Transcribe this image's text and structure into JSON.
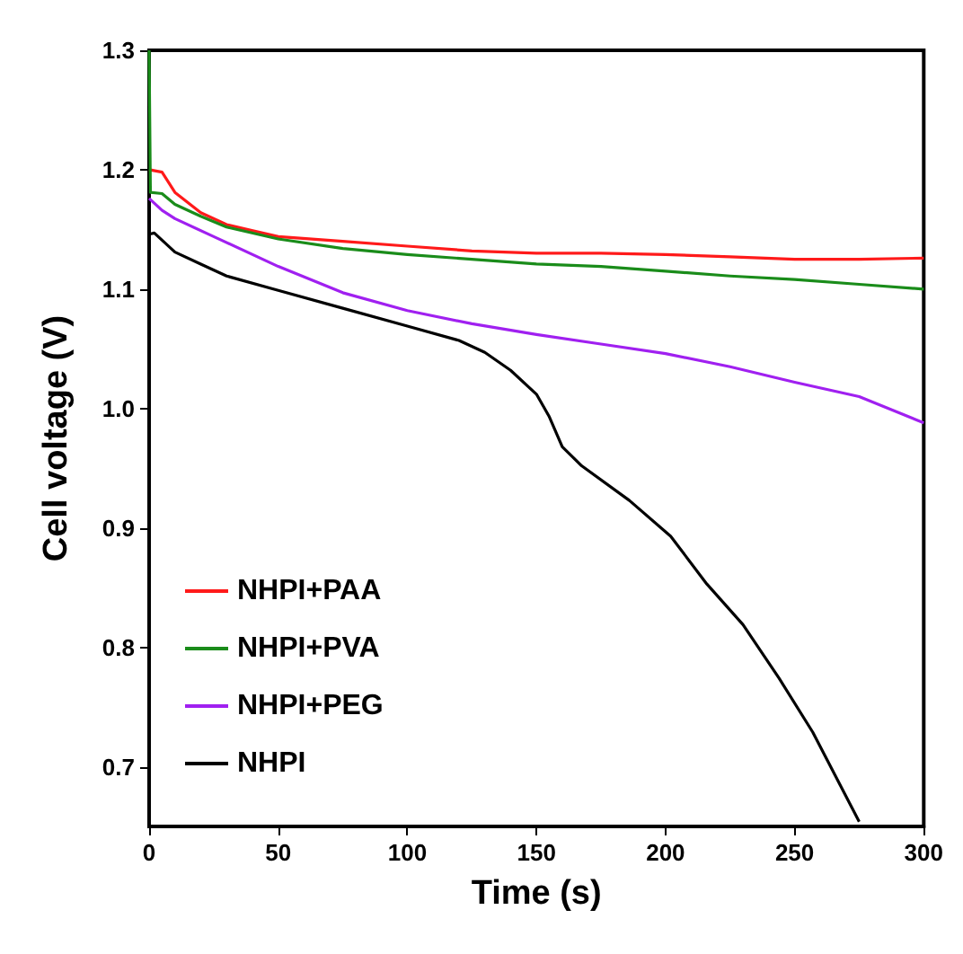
{
  "chart_data": {
    "type": "line",
    "xlabel": "Time (s)",
    "ylabel": "Cell voltage (V)",
    "xlim": [
      0,
      300
    ],
    "xticks": [
      0,
      50,
      100,
      150,
      200,
      250,
      300
    ],
    "ylim": [
      0.65,
      1.3
    ],
    "yticks": [
      0.7,
      0.8,
      0.9,
      {
        "value": 1,
        "label": "1.0"
      },
      1.1,
      1.2,
      1.3
    ],
    "grid": false,
    "legend": "bottom left",
    "marker": "none",
    "line_style": "solid",
    "series": [
      {
        "name": "NHPI+PAA",
        "color": "#ff1a1a",
        "x": [
          0,
          5,
          10,
          20,
          30,
          50,
          75,
          100,
          125,
          150,
          175,
          200,
          225,
          250,
          275,
          300
        ],
        "values": [
          1.2,
          1.198,
          1.181,
          1.164,
          1.154,
          1.144,
          1.14,
          1.136,
          1.132,
          1.13,
          1.13,
          1.129,
          1.127,
          1.125,
          1.125,
          1.126
        ]
      },
      {
        "name": "NHPI+PVA",
        "color": "#1a8c1a",
        "x": [
          0,
          0.5,
          5,
          10,
          20,
          30,
          50,
          75,
          100,
          125,
          150,
          175,
          200,
          225,
          250,
          275,
          300
        ],
        "values": [
          1.3,
          1.181,
          1.18,
          1.171,
          1.161,
          1.152,
          1.142,
          1.134,
          1.129,
          1.125,
          1.121,
          1.119,
          1.115,
          1.111,
          1.108,
          1.104,
          1.1
        ]
      },
      {
        "name": "NHPI+PEG",
        "color": "#a020f0",
        "x": [
          0,
          5,
          10,
          25,
          50,
          75,
          100,
          125,
          150,
          175,
          200,
          225,
          250,
          275,
          300
        ],
        "values": [
          1.176,
          1.166,
          1.159,
          1.144,
          1.119,
          1.097,
          1.082,
          1.071,
          1.062,
          1.054,
          1.046,
          1.035,
          1.022,
          1.01,
          0.988
        ]
      },
      {
        "name": "NHPI",
        "color": "#000000",
        "x": [
          0,
          2,
          10,
          20,
          30,
          50,
          75,
          100,
          120,
          130,
          140,
          150,
          155,
          160,
          167.5,
          186,
          202,
          216,
          230,
          244,
          257,
          275
        ],
        "values": [
          1.146,
          1.147,
          1.131,
          1.121,
          1.111,
          1.099,
          1.084,
          1.069,
          1.057,
          1.047,
          1.032,
          1.012,
          0.993,
          0.968,
          0.952,
          0.923,
          0.893,
          0.853,
          0.819,
          0.774,
          0.729,
          0.654
        ]
      }
    ]
  }
}
